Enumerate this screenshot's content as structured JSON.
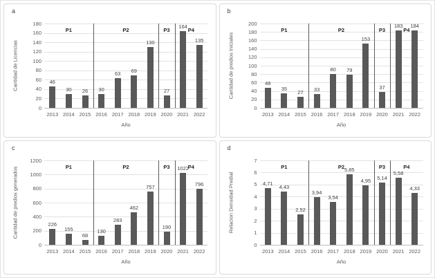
{
  "colors": {
    "bar": "#595959",
    "gridline": "#e2e2e2",
    "axis_line": "#bdbdbd",
    "divider": "#595959",
    "tick_text": "#595959",
    "data_label_text": "#404040",
    "period_text": "#1f1f1f",
    "panel_border": "#d9d9d9"
  },
  "chart_data": [
    {
      "type": "bar",
      "letter": "a",
      "ylabel": "Cantidad de Licencias",
      "xlabel": "Año",
      "categories": [
        "2013",
        "2014",
        "2015",
        "2016",
        "2017",
        "2018",
        "2019",
        "2020",
        "2021",
        "2022"
      ],
      "values": [
        46,
        30,
        26,
        30,
        63,
        69,
        130,
        27,
        164,
        135
      ],
      "labels": [
        "46",
        "30",
        "26",
        "30",
        "63",
        "69",
        "130",
        "27",
        "164",
        "135"
      ],
      "ylim": [
        0,
        180
      ],
      "ystep": 20,
      "grid": true,
      "periods": [
        {
          "label": "P1",
          "start": 0,
          "end": 2
        },
        {
          "label": "P2",
          "start": 3,
          "end": 6
        },
        {
          "label": "P3",
          "start": 7,
          "end": 7
        },
        {
          "label": "P4",
          "start": 8,
          "end": 9
        }
      ],
      "dividers_after_index": [
        2,
        6,
        7
      ]
    },
    {
      "type": "bar",
      "letter": "b",
      "ylabel": "Cantidad de predios Iniciales",
      "xlabel": "Año",
      "categories": [
        "2013",
        "2014",
        "2015",
        "2016",
        "2017",
        "2018",
        "2019",
        "2020",
        "2021",
        "2022"
      ],
      "values": [
        48,
        35,
        27,
        33,
        80,
        79,
        153,
        37,
        183,
        184
      ],
      "labels": [
        "48",
        "35",
        "27",
        "33",
        "80",
        "79",
        "153",
        "37",
        "183",
        "184"
      ],
      "ylim": [
        0,
        200
      ],
      "ystep": 20,
      "grid": true,
      "periods": [
        {
          "label": "P1",
          "start": 0,
          "end": 2
        },
        {
          "label": "P2",
          "start": 3,
          "end": 6
        },
        {
          "label": "P3",
          "start": 7,
          "end": 7
        },
        {
          "label": "P4",
          "start": 8,
          "end": 9
        }
      ],
      "dividers_after_index": [
        2,
        6,
        7
      ]
    },
    {
      "type": "bar",
      "letter": "c",
      "ylabel": "Cantidad de predios generados",
      "xlabel": "Año",
      "categories": [
        "2013",
        "2014",
        "2015",
        "2016",
        "2017",
        "2018",
        "2019",
        "2020",
        "2021",
        "2022"
      ],
      "values": [
        226,
        155,
        68,
        130,
        283,
        462,
        757,
        190,
        1022,
        796
      ],
      "labels": [
        "226",
        "155",
        "68",
        "130",
        "283",
        "462",
        "757",
        "190",
        "1022",
        "796"
      ],
      "ylim": [
        0,
        1200
      ],
      "ystep": 200,
      "grid": true,
      "periods": [
        {
          "label": "P1",
          "start": 0,
          "end": 2
        },
        {
          "label": "P2",
          "start": 3,
          "end": 6
        },
        {
          "label": "P3",
          "start": 7,
          "end": 7
        },
        {
          "label": "P4",
          "start": 8,
          "end": 9
        }
      ],
      "dividers_after_index": [
        2,
        6,
        7
      ]
    },
    {
      "type": "bar",
      "letter": "d",
      "ylabel": "Relacion  Densidad Predial",
      "xlabel": "Año",
      "categories": [
        "2013",
        "2014",
        "2015",
        "2016",
        "2017",
        "2018",
        "2019",
        "2020",
        "2021",
        "2022"
      ],
      "values": [
        4.71,
        4.43,
        2.52,
        3.94,
        3.54,
        5.85,
        4.95,
        5.14,
        5.58,
        4.33
      ],
      "labels": [
        "4,71",
        "4,43",
        "2,52",
        "3,94",
        "3,54",
        "5,85",
        "4,95",
        "5,14",
        "5,58",
        "4,33"
      ],
      "ylim": [
        0,
        7
      ],
      "ystep": 1,
      "grid": true,
      "periods": [
        {
          "label": "P1",
          "start": 0,
          "end": 2
        },
        {
          "label": "P2",
          "start": 3,
          "end": 6
        },
        {
          "label": "P3",
          "start": 7,
          "end": 7
        },
        {
          "label": "P4",
          "start": 8,
          "end": 9
        }
      ],
      "dividers_after_index": [
        2,
        6,
        7
      ]
    }
  ]
}
